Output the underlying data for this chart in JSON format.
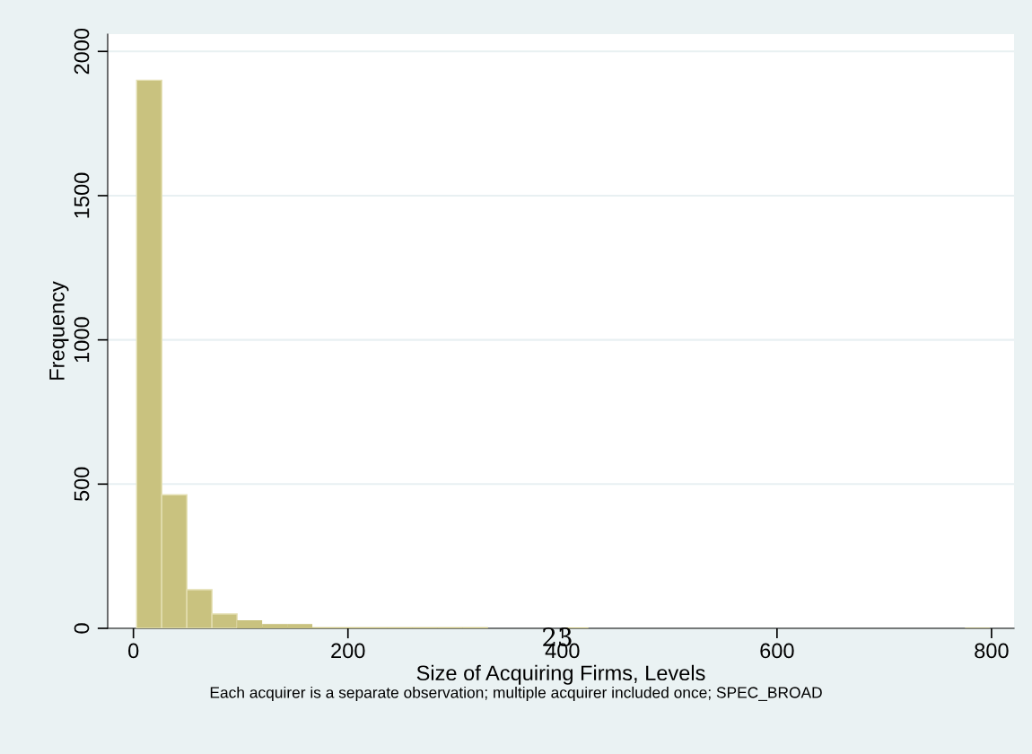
{
  "chart_data": {
    "type": "histogram",
    "xlabel": "Size of Acquiring Firms, Levels",
    "ylabel": "Frequency",
    "bins": [
      3,
      26.4,
      49.8,
      73.2,
      96.6,
      120,
      143.4,
      166.8,
      190.2,
      213.6,
      237,
      260.4,
      283.8,
      307.2,
      330.6,
      354,
      377.4,
      400.8,
      424.2,
      447.6,
      471,
      494.4,
      517.8,
      541.2,
      564.6,
      588,
      611.4,
      634.8,
      658.2,
      681.6,
      705,
      728.4,
      751.8,
      775.2,
      798.6
    ],
    "values": [
      1900,
      463,
      134,
      50,
      28,
      15,
      15,
      4,
      4,
      4,
      4,
      4,
      4,
      4,
      0,
      0,
      0,
      3,
      0,
      0,
      0,
      0,
      0,
      0,
      0,
      0,
      0,
      0,
      0,
      0,
      0,
      0,
      0,
      2
    ],
    "color": "#c9c27f",
    "xlim": [
      -24,
      821
    ],
    "ylim": [
      0,
      2060
    ],
    "xticks": [
      0,
      200,
      400,
      600,
      800
    ],
    "yticks": [
      0,
      500,
      1000,
      1500,
      2000
    ],
    "grid": "y",
    "annotations": [
      "Each acquirer is a separate observation; multiple acquirer included once; SPEC_BROAD",
      "23"
    ]
  }
}
